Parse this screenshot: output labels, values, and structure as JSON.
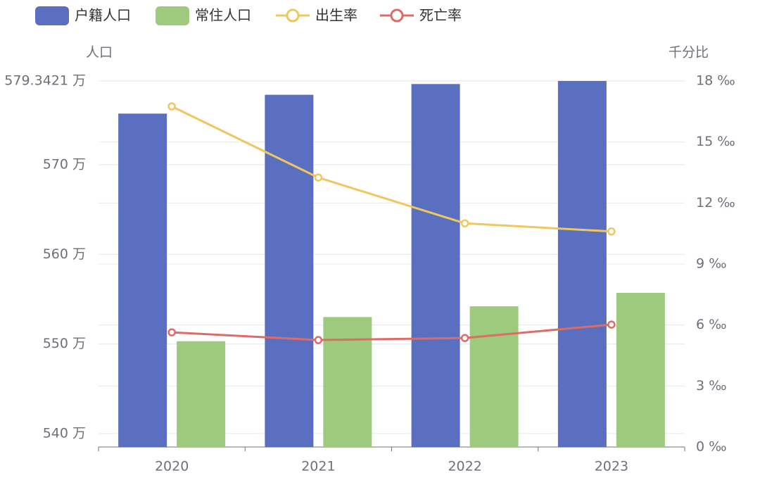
{
  "chart_data": {
    "type": "bar-line",
    "categories": [
      "2020",
      "2021",
      "2022",
      "2023"
    ],
    "y_axis_label": "人口",
    "y2_axis_label": "千分比",
    "series": [
      {
        "name": "户籍人口",
        "type": "bar",
        "color": "#5a6fc0",
        "values": [
          575.7,
          577.8,
          579.0,
          579.3421
        ]
      },
      {
        "name": "常住人口",
        "type": "bar",
        "color": "#9dca7c",
        "values": [
          550.3,
          553.0,
          554.2,
          555.7
        ]
      },
      {
        "name": "出生率",
        "type": "line",
        "axis": "y2",
        "color": "#f0c75e",
        "values": [
          16.75,
          13.25,
          11.0,
          10.6
        ]
      },
      {
        "name": "死亡率",
        "type": "line",
        "axis": "y2",
        "color": "#dd6b66",
        "values": [
          5.64,
          5.26,
          5.36,
          6.02
        ]
      }
    ],
    "ylim": [
      538.5,
      579.3421
    ],
    "yticks": [
      {
        "value": 540,
        "label": "540 万"
      },
      {
        "value": 550,
        "label": "550 万"
      },
      {
        "value": 560,
        "label": "560 万"
      },
      {
        "value": 570,
        "label": "570 万"
      },
      {
        "value": 579.3421,
        "label": "579.3421 万"
      }
    ],
    "y2lim": [
      0,
      18
    ],
    "y2ticks": [
      {
        "value": 0,
        "label": "0 ‰"
      },
      {
        "value": 3,
        "label": "3 ‰"
      },
      {
        "value": 6,
        "label": "6 ‰"
      },
      {
        "value": 9,
        "label": "9 ‰"
      },
      {
        "value": 12,
        "label": "12 ‰"
      },
      {
        "value": 15,
        "label": "15 ‰"
      },
      {
        "value": 18,
        "label": "18 ‰"
      }
    ],
    "grid": true
  }
}
